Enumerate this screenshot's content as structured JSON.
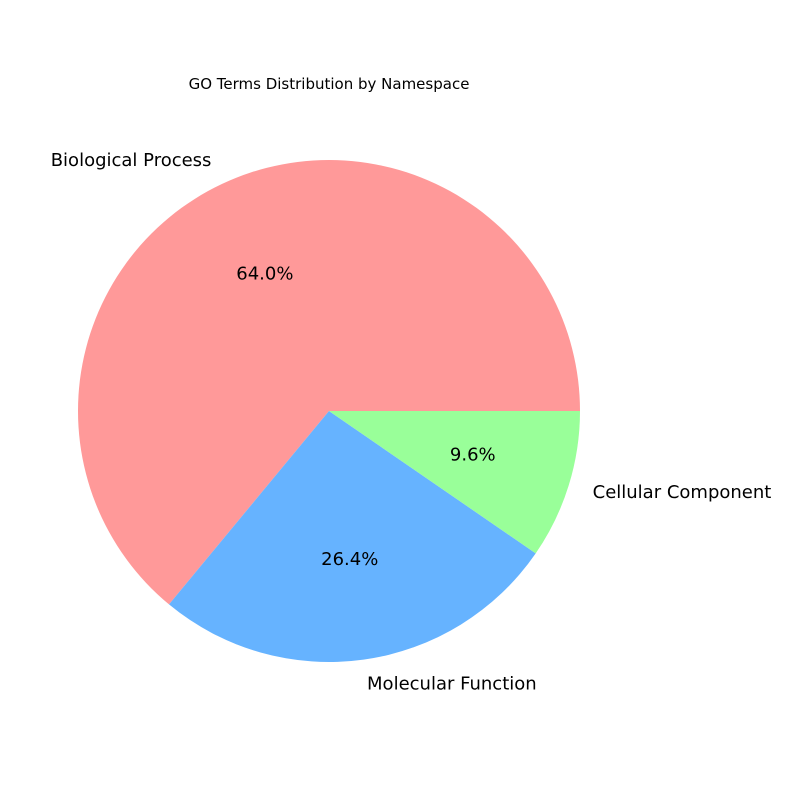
{
  "chart_data": {
    "type": "pie",
    "title": "GO Terms Distribution by Namespace",
    "start_angle_deg": 0,
    "direction": "counterclockwise",
    "slices": [
      {
        "label": "Biological Process",
        "value": 64.0,
        "pct_label": "64.0%",
        "color": "#ff9999"
      },
      {
        "label": "Molecular Function",
        "value": 26.4,
        "pct_label": "26.4%",
        "color": "#66b3ff"
      },
      {
        "label": "Cellular Component",
        "value": 9.6,
        "pct_label": "9.6%",
        "color": "#99ff99"
      }
    ],
    "legend": "none"
  }
}
